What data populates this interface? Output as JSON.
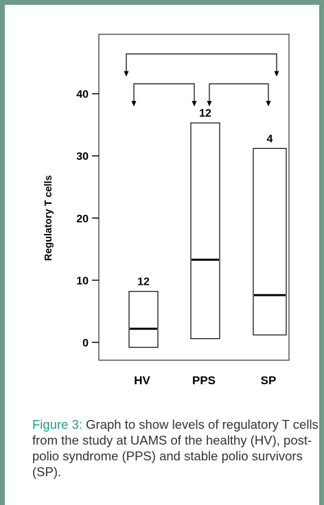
{
  "figure": {
    "label": "Figure 3:",
    "caption": "Graph to show levels of regulatory T cells from the study at UAMS of the healthy (HV), post-polio syndrome (PPS) and stable polio survivors (SP)."
  },
  "colors": {
    "frame_border": "#6e9a87",
    "caption_label": "#1f9a8d",
    "caption_text": "#333333",
    "ink": "#000000"
  },
  "chart_data": {
    "type": "box",
    "ylabel": "Regulatory T cells",
    "ylim": [
      -3,
      50
    ],
    "yticks": [
      0,
      10,
      20,
      30,
      40
    ],
    "categories": [
      "HV",
      "PPS",
      "SP"
    ],
    "boxes": [
      {
        "category": "HV",
        "low": -0.8,
        "high": 8.2,
        "median": 2.2,
        "n_label": "12"
      },
      {
        "category": "PPS",
        "low": 0.6,
        "high": 35.3,
        "median": 13.3,
        "n_label": "12"
      },
      {
        "category": "SP",
        "low": 1.2,
        "high": 31.2,
        "median": 7.6,
        "n_label": "4"
      }
    ],
    "comparison_brackets": [
      {
        "from": "HV",
        "to": "SP",
        "level": 46.4
      },
      {
        "from": "HV",
        "to": "PPS",
        "level": 41.6
      },
      {
        "from": "PPS",
        "to": "SP",
        "level": 41.6
      }
    ],
    "grid": false,
    "legend": "none"
  }
}
